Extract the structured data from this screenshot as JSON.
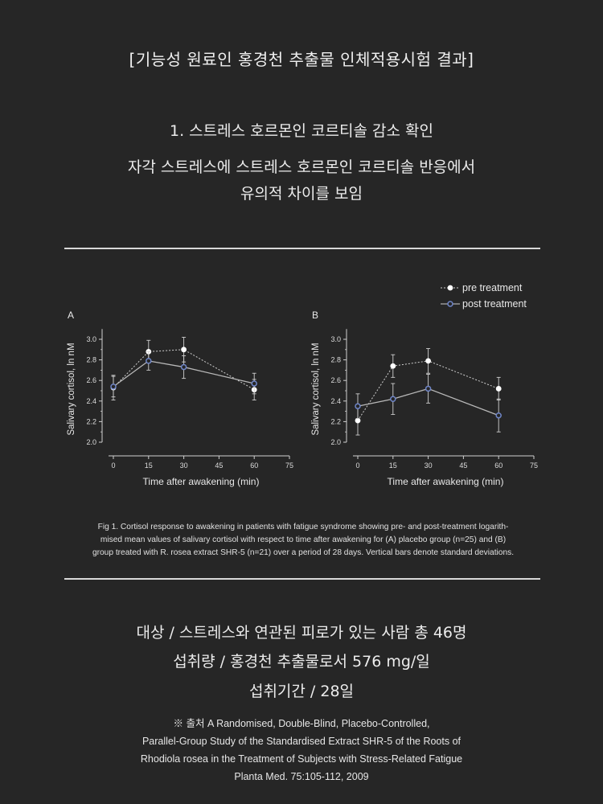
{
  "heading": "[기능성 원료인 홍경천 추출물 인체적용시험 결과]",
  "subtitle": {
    "line1": "1. 스트레스 호르몬인 코르티솔 감소 확인",
    "line2": "자각 스트레스에 스트레스 호르몬인 코르티솔 반응에서",
    "line3": "유의적 차이를 보임"
  },
  "colors": {
    "background": "#262626",
    "text": "#ececec",
    "pre": "#ffffff",
    "post": "#6f86c8",
    "axis": "#d0d0d0"
  },
  "chart_data": [
    {
      "type": "line",
      "panel_label": "A",
      "xlabel": "Time after awakening (min)",
      "ylabel": "Salivary cortisol, ln nM",
      "x_ticks": [
        0,
        15,
        30,
        45,
        60,
        75
      ],
      "y_ticks": [
        "2.0",
        "2.2",
        "2.4",
        "2.6",
        "2.8",
        "3.0"
      ],
      "xlim": [
        0,
        75
      ],
      "ylim": [
        2.0,
        3.1
      ],
      "x": [
        0,
        15,
        30,
        60
      ],
      "series": [
        {
          "name": "pre treatment",
          "values": [
            2.53,
            2.88,
            2.9,
            2.51
          ],
          "sd": [
            0.12,
            0.11,
            0.12,
            0.1
          ]
        },
        {
          "name": "post treatment",
          "values": [
            2.54,
            2.79,
            2.73,
            2.57
          ],
          "sd": [
            0.1,
            0.09,
            0.11,
            0.1
          ]
        }
      ]
    },
    {
      "type": "line",
      "panel_label": "B",
      "xlabel": "Time after awakening (min)",
      "ylabel": "Salivary cortisol, ln nM",
      "x_ticks": [
        0,
        15,
        30,
        45,
        60,
        75
      ],
      "y_ticks": [
        "2.0",
        "2.2",
        "2.4",
        "2.6",
        "2.8",
        "3.0"
      ],
      "xlim": [
        0,
        75
      ],
      "ylim": [
        2.0,
        3.1
      ],
      "x": [
        0,
        15,
        30,
        60
      ],
      "series": [
        {
          "name": "pre treatment",
          "values": [
            2.21,
            2.74,
            2.79,
            2.52
          ],
          "sd": [
            0.14,
            0.11,
            0.12,
            0.11
          ]
        },
        {
          "name": "post treatment",
          "values": [
            2.35,
            2.42,
            2.52,
            2.26
          ],
          "sd": [
            0.12,
            0.15,
            0.14,
            0.16
          ]
        }
      ],
      "legend_position": "top-right"
    }
  ],
  "caption": {
    "line1": "Fig 1. Cortisol response to awakening in patients with fatigue syndrome showing pre- and post-treatment logarith-",
    "line2": "mised mean values of salivary cortisol with respect to time after awakening for (A) placebo group (n=25) and (B)",
    "line3": "group treated with R. rosea extract SHR-5 (n=21) over a period of 28 days. Vertical bars denote standard deviations."
  },
  "info": {
    "line1": "대상 / 스트레스와 연관된 피로가 있는 사람 총 46명",
    "line2": "섭취량 / 홍경천 추출물로서 576 mg/일",
    "line3": "섭취기간 / 28일"
  },
  "source": {
    "line1": "※ 출처 A Randomised, Double-Blind, Placebo-Controlled,",
    "line2": "Parallel-Group Study of the Standardised Extract  SHR-5 of the Roots of",
    "line3": "Rhodiola rosea in the Treatment of Subjects with Stress-Related Fatigue",
    "line4": "Planta Med. 75:105-112, 2009"
  }
}
